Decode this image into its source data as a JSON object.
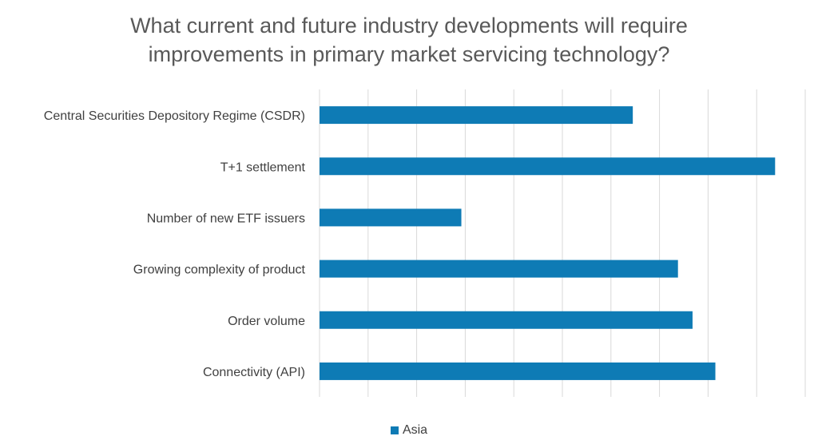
{
  "chart_data": {
    "type": "bar",
    "orientation": "horizontal",
    "title_lines": [
      "What current and future industry developments will require",
      "improvements in primary market servicing technology?"
    ],
    "categories": [
      "Central Securities Depository Regime (CSDR)",
      "T+1 settlement",
      "Number of new ETF issuers",
      "Growing complexity of product",
      "Order volume",
      "Connectivity (API)"
    ],
    "series": [
      {
        "name": "Asia",
        "color": "#0E7BB5",
        "values": [
          6.45,
          9.38,
          2.92,
          7.38,
          7.68,
          8.15
        ]
      }
    ],
    "xlim": [
      0,
      10
    ],
    "x_gridlines": true,
    "x_tick_labels_shown": false,
    "legend_position": "bottom"
  }
}
